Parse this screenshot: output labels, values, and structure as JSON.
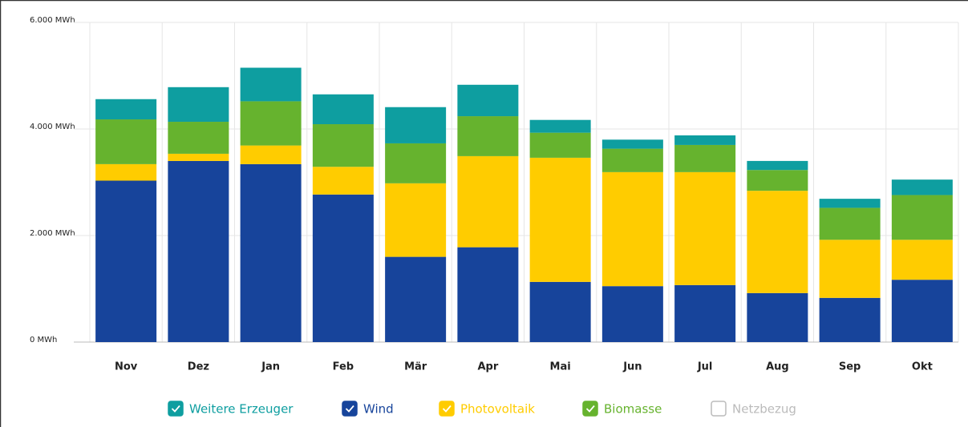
{
  "chart_data": {
    "type": "stacked_bar",
    "categories": [
      "Nov",
      "Dez",
      "Jan",
      "Feb",
      "Mär",
      "Apr",
      "Mai",
      "Jun",
      "Jul",
      "Aug",
      "Sep",
      "Okt"
    ],
    "series": [
      {
        "name": "Weitere Erzeuger",
        "color": "#0e9ea0",
        "values": [
          380,
          650,
          630,
          560,
          680,
          590,
          240,
          170,
          180,
          170,
          170,
          290
        ]
      },
      {
        "name": "Wind",
        "color": "#17449b",
        "values": [
          3030,
          3400,
          3340,
          2770,
          1600,
          1780,
          1130,
          1050,
          1070,
          920,
          830,
          1170
        ]
      },
      {
        "name": "Photovoltaik",
        "color": "#ffcc00",
        "values": [
          310,
          135,
          350,
          520,
          1380,
          1710,
          2330,
          2140,
          2120,
          1920,
          1090,
          750
        ]
      },
      {
        "name": "Biomasse",
        "color": "#66b32e",
        "values": [
          840,
          600,
          830,
          800,
          750,
          750,
          470,
          440,
          510,
          390,
          600,
          840
        ]
      },
      {
        "name": "Netzbezug",
        "color": "#c8c8c8",
        "visible": false,
        "values": [
          null,
          null,
          null,
          null,
          null,
          null,
          null,
          null,
          null,
          null,
          null,
          null
        ]
      }
    ],
    "ylim": [
      0,
      6000
    ],
    "yticks": [
      {
        "value": 0,
        "label": "0 MWh"
      },
      {
        "value": 2000,
        "label": "2.000 MWh"
      },
      {
        "value": 4000,
        "label": "4.000 MWh"
      },
      {
        "value": 6000,
        "label": "6.000 MWh"
      }
    ],
    "grid": true
  }
}
